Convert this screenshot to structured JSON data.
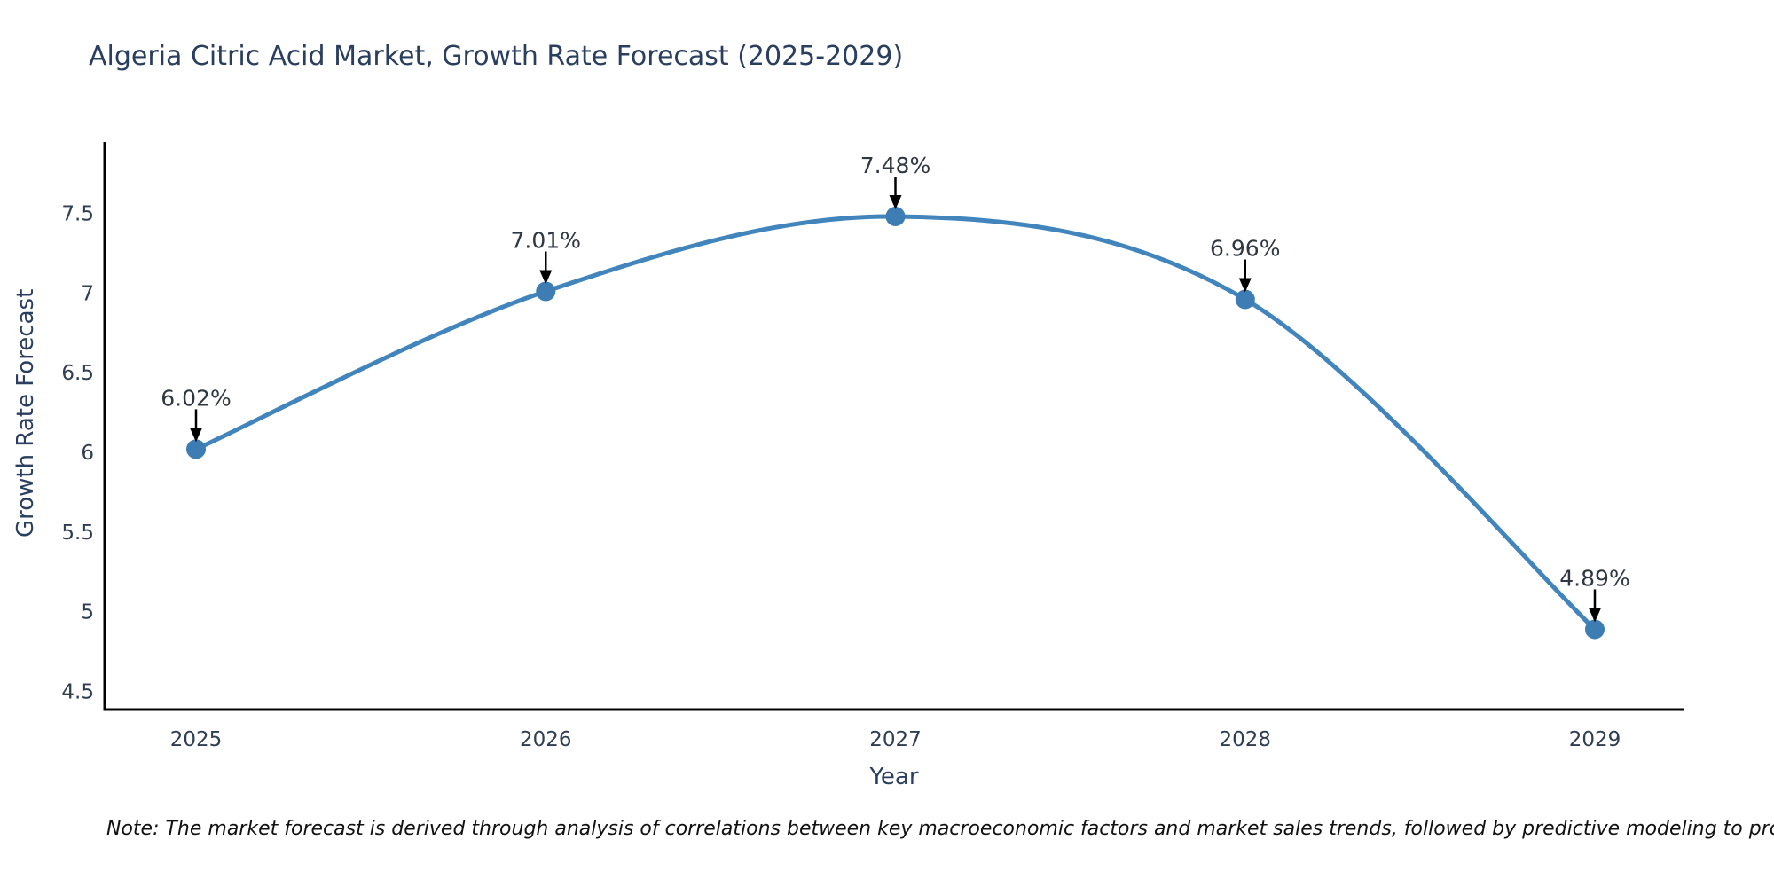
{
  "title": "Algeria Citric Acid Market, Growth Rate Forecast (2025-2029)",
  "note": "Note: The market forecast is derived through analysis of correlations between key macroeconomic factors and market sales trends, followed by predictive modeling to project future sales",
  "colors": {
    "line": "#4285bd",
    "marker": "#3d7db4",
    "axis": "#000000",
    "heading_text": "#2a3f5f",
    "tick_text": "#2f3e52",
    "annotation_text": "#2f3742",
    "arrow": "#000000",
    "background": "#ffffff"
  },
  "chart_data": {
    "type": "line",
    "title": "Algeria Citric Acid Market, Growth Rate Forecast (2025-2029)",
    "xlabel": "Year",
    "ylabel": "Growth Rate Forecast",
    "x": [
      2025,
      2026,
      2027,
      2028,
      2029
    ],
    "values": [
      6.02,
      7.01,
      7.48,
      6.96,
      4.89
    ],
    "point_labels": [
      "6.02%",
      "7.01%",
      "7.48%",
      "6.96%",
      "4.89%"
    ],
    "xtick_labels": [
      "2025",
      "2026",
      "2027",
      "2028",
      "2029"
    ],
    "ytick_values": [
      4.5,
      5,
      5.5,
      6,
      6.5,
      7,
      7.5
    ],
    "ytick_labels": [
      "4.5",
      "5",
      "5.5",
      "6",
      "6.5",
      "7",
      "7.5"
    ],
    "ylim": [
      4.39,
      7.95
    ],
    "xlim": [
      2024.74,
      2029.25
    ],
    "grid": false,
    "legend_position": "none",
    "line_shape": "smooth",
    "marker": "circle",
    "annotation_style": "value label above point with black down arrow"
  }
}
